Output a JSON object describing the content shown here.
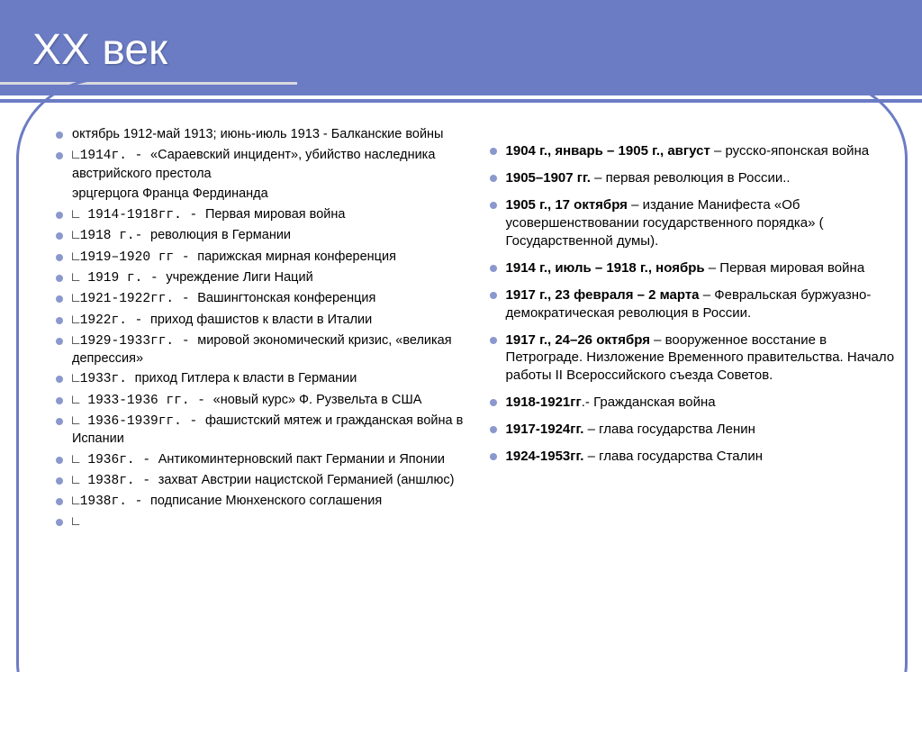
{
  "colors": {
    "banner": "#6b7cc4",
    "bullet": "#8a98ce",
    "underline": "#d9d9df",
    "text": "#000000",
    "title": "#ffffff"
  },
  "title": "XX век",
  "left": [
    {
      "pre": "",
      "bold": "",
      "text": "октябрь 1912-май 1913; июнь-июль 1913 - Балканские войны"
    },
    {
      "pre": "∟1914г. - ",
      "bold": "",
      "text": "«Сараевский инцидент», убийство наследника австрийского престола"
    },
    {
      "pre": "",
      "bold": "",
      "text": "эрцгерцога Франца Фердинанда",
      "nobullet": true
    },
    {
      "pre": "∟ 1914-1918гг. - ",
      "bold": "",
      "text": "Первая мировая война"
    },
    {
      "pre": "∟1918 г.- ",
      "bold": "",
      "text": "революция в Германии"
    },
    {
      "pre": "∟1919–1920 гг - ",
      "bold": "",
      "text": "парижская мирная конференция"
    },
    {
      "pre": "∟ 1919 г. - ",
      "bold": "",
      "text": "учреждение Лиги Наций"
    },
    {
      "pre": "∟1921-1922гг. - ",
      "bold": "",
      "text": "Вашингтонская конференция"
    },
    {
      "pre": "∟1922г. - ",
      "bold": "",
      "text": "приход фашистов к власти в Италии"
    },
    {
      "pre": "∟1929-1933гг. - ",
      "bold": "",
      "text": "мировой экономический кризис, «великая депрессия»"
    },
    {
      "pre": "∟1933г. ",
      "bold": "",
      "text": "приход Гитлера к власти в Германии"
    },
    {
      "pre": "∟ 1933-1936 гг. - ",
      "bold": "",
      "text": "«новый курс» Ф. Рузвельта в США"
    },
    {
      "pre": "∟ 1936-1939гг. - ",
      "bold": "",
      "text": "фашистский мятеж и гражданская война в Испании"
    },
    {
      "pre": "∟ 1936г. - ",
      "bold": "",
      "text": "Антикоминтерновский пакт Германии и Японии"
    },
    {
      "pre": "∟ 1938г. - ",
      "bold": "",
      "text": "захват Австрии нацистской Германией (аншлюс)"
    },
    {
      "pre": "∟1938г. - ",
      "bold": "",
      "text": "подписание Мюнхенского соглашения"
    },
    {
      "pre": "∟",
      "bold": "",
      "text": ""
    }
  ],
  "right": [
    {
      "bold": "1904 г., январь – 1905 г., август",
      "text": " – русско-японская война"
    },
    {
      "bold": "1905–1907 гг.",
      "text": " – первая революция в России.."
    },
    {
      "bold": "1905 г., 17 октября",
      "text": " – издание Манифеста «Об усовершенствовании государственного порядка»  (  Государственной думы)."
    },
    {
      "bold": "1914 г., июль – 1918 г., ноябрь",
      "text": " – Первая мировая война"
    },
    {
      "bold": "1917 г., 23 февраля – 2 марта",
      "text": " – Февральская буржуазно-демократическая революция в России."
    },
    {
      "bold": "1917 г., 24–26 октября",
      "text": " – вооруженное восстание в Петрограде. Низложение Временного правительства. Начало работы II Всероссийского съезда Советов."
    },
    {
      "bold": "1918-1921гг",
      "text": ".- Гражданская война"
    },
    {
      "bold": "1917-1924гг.",
      "text": " – глава государства Ленин"
    },
    {
      "bold": "1924-1953гг.",
      "text": " – глава государства Сталин"
    }
  ]
}
